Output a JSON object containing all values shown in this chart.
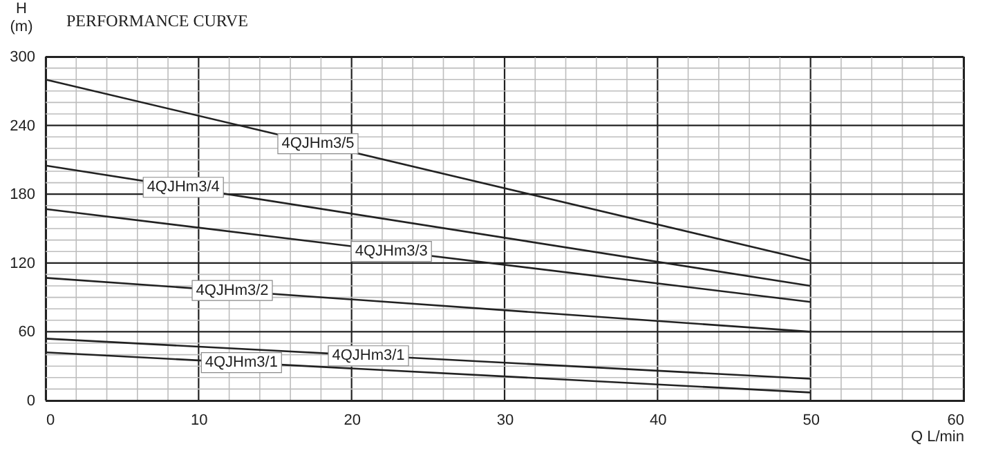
{
  "chart_data": {
    "type": "line",
    "title": "PERFORMANCE CURVE",
    "xlabel": "Q  L/min",
    "ylabel": "H (m)",
    "x": [
      0,
      50
    ],
    "series": [
      {
        "color": "#222222",
        "values": [
          280,
          122
        ]
      },
      {
        "color": "#222222",
        "values": [
          205,
          100
        ]
      },
      {
        "color": "#222222",
        "values": [
          167,
          86
        ]
      },
      {
        "color": "#222222",
        "values": [
          107,
          60
        ]
      },
      {
        "color": "#222222",
        "values": [
          54,
          19
        ]
      },
      {
        "color": "#222222",
        "values": [
          42,
          7
        ]
      }
    ],
    "annotations": [
      {
        "text": "4QJHm3/5",
        "x": 17.8,
        "y": 224
      },
      {
        "text": "4QJHm3/4",
        "x": 9.0,
        "y": 186
      },
      {
        "text": "4QJHm3/3",
        "x": 22.6,
        "y": 130
      },
      {
        "text": "4QJHm3/2",
        "x": 12.2,
        "y": 96
      },
      {
        "text": "4QJHm3/1",
        "x": 21.1,
        "y": 39
      },
      {
        "text": "4QJHm3/1",
        "x": 12.8,
        "y": 33
      }
    ],
    "xlim": [
      0,
      60
    ],
    "ylim": [
      0,
      300
    ],
    "xticks": [
      0,
      {
        "value": 2,
        "label": null
      },
      {
        "value": 4,
        "label": null
      },
      {
        "value": 6,
        "label": null
      },
      {
        "value": 8,
        "label": null
      },
      10,
      {
        "value": 12,
        "label": null
      },
      {
        "value": 14,
        "label": null
      },
      {
        "value": 16,
        "label": null
      },
      {
        "value": 18,
        "label": null
      },
      20,
      {
        "value": 22,
        "label": null
      },
      {
        "value": 24,
        "label": null
      },
      {
        "value": 26,
        "label": null
      },
      {
        "value": 28,
        "label": null
      },
      30,
      {
        "value": 32,
        "label": null
      },
      {
        "value": 34,
        "label": null
      },
      {
        "value": 36,
        "label": null
      },
      {
        "value": 38,
        "label": null
      },
      40,
      {
        "value": 42,
        "label": null
      },
      {
        "value": 44,
        "label": null
      },
      {
        "value": 46,
        "label": null
      },
      {
        "value": 48,
        "label": null
      },
      50,
      {
        "value": 52,
        "label": null
      },
      {
        "value": 54,
        "label": null
      },
      {
        "value": 56,
        "label": null
      },
      {
        "value": 58,
        "label": null
      },
      60
    ],
    "yticks": [
      0,
      {
        "value": 10,
        "label": null
      },
      {
        "value": 20,
        "label": null
      },
      {
        "value": 30,
        "label": null
      },
      {
        "value": 40,
        "label": null
      },
      {
        "value": 50,
        "label": null
      },
      60,
      {
        "value": 70,
        "label": null
      },
      {
        "value": 80,
        "label": null
      },
      {
        "value": 90,
        "label": null
      },
      {
        "value": 100,
        "label": null
      },
      {
        "value": 110,
        "label": null
      },
      120,
      {
        "value": 130,
        "label": null
      },
      {
        "value": 140,
        "label": null
      },
      {
        "value": 150,
        "label": null
      },
      {
        "value": 160,
        "label": null
      },
      {
        "value": 170,
        "label": null
      },
      180,
      {
        "value": 190,
        "label": null
      },
      {
        "value": 200,
        "label": null
      },
      {
        "value": 210,
        "label": null
      },
      {
        "value": 220,
        "label": null
      },
      {
        "value": 230,
        "label": null
      },
      240,
      {
        "value": 250,
        "label": null
      },
      {
        "value": 260,
        "label": null
      },
      {
        "value": 270,
        "label": null
      },
      {
        "value": 280,
        "label": null
      },
      {
        "value": 290,
        "label": null
      },
      300
    ],
    "grid": true,
    "marker": "none",
    "line_style": "solid"
  }
}
